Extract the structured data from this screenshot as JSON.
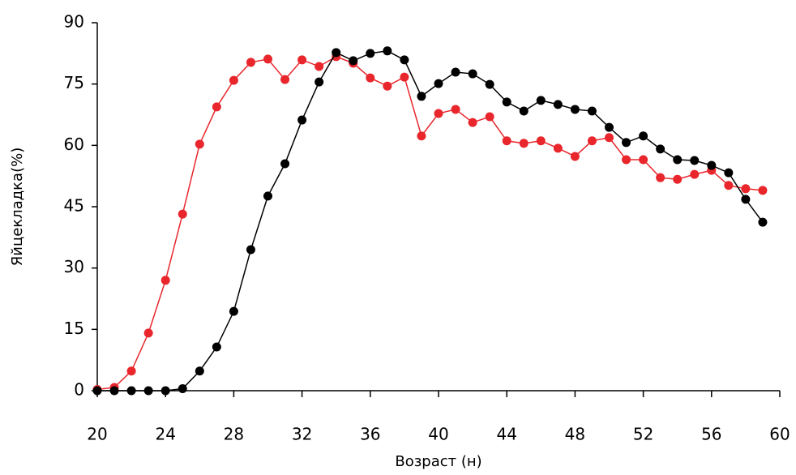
{
  "chart_data": {
    "type": "line",
    "x_label": "Возраст (н)",
    "y_label": "Яйцекладка(%)",
    "x": [
      20,
      21,
      22,
      23,
      24,
      25,
      26,
      27,
      28,
      29,
      30,
      31,
      32,
      33,
      34,
      35,
      36,
      37,
      38,
      39,
      40,
      41,
      42,
      43,
      44,
      45,
      46,
      47,
      48,
      49,
      50,
      51,
      52,
      53,
      54,
      55,
      56,
      57,
      58,
      59
    ],
    "series": [
      {
        "color": "#e8262c",
        "values": [
          0.3,
          0.8,
          4.8,
          14.1,
          27.0,
          43.2,
          60.3,
          69.4,
          75.9,
          80.3,
          81.1,
          76.1,
          80.9,
          79.3,
          81.7,
          80.1,
          76.5,
          74.5,
          76.7,
          62.3,
          67.8,
          68.8,
          65.6,
          67.0,
          61.1,
          60.5,
          61.1,
          59.3,
          57.3,
          61.1,
          61.9,
          56.5,
          56.5,
          52.1,
          51.7,
          52.9,
          53.9,
          50.2,
          49.4,
          49.0
        ]
      },
      {
        "color": "#000000",
        "values": [
          0,
          0,
          0,
          0,
          0,
          0.5,
          4.8,
          10.7,
          19.4,
          34.5,
          47.6,
          55.5,
          66.2,
          75.5,
          82.7,
          80.7,
          82.5,
          83.1,
          80.9,
          72.0,
          75.1,
          77.9,
          77.5,
          74.9,
          70.6,
          68.4,
          71.0,
          70.0,
          68.8,
          68.4,
          64.4,
          60.7,
          62.3,
          59.1,
          56.5,
          56.3,
          55.1,
          53.3,
          46.8,
          41.2
        ]
      }
    ],
    "xlim": [
      20,
      60
    ],
    "xticks": [
      20,
      24,
      28,
      32,
      36,
      40,
      44,
      48,
      52,
      56,
      60
    ],
    "ylim": [
      0,
      90
    ],
    "yticks": [
      0,
      15,
      30,
      45,
      60,
      75,
      90
    ],
    "grid": false
  }
}
